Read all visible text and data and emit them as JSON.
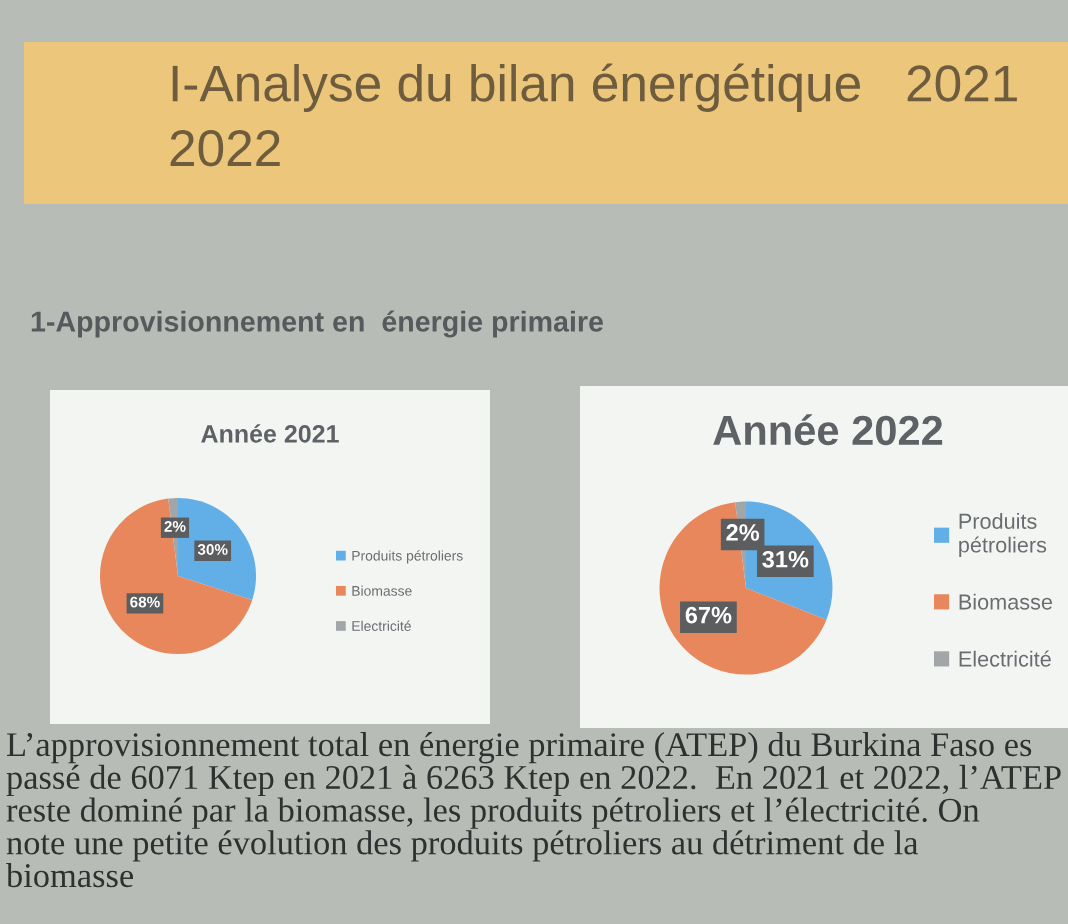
{
  "chart_data": [
    {
      "type": "pie",
      "title": "Année 2021",
      "categories": [
        "Produits pétroliers",
        "Biomasse",
        "Electricité"
      ],
      "values": [
        30,
        68,
        2
      ],
      "colors": [
        "#62aee6",
        "#e8875c",
        "#a3a6a8"
      ],
      "value_labels": [
        "30%",
        "68%",
        "2%"
      ],
      "legend": "right",
      "annotations": [
        "I-Analyse du bilan énergétique   2021\n2022",
        "1-Approvisionnement en  énergie primaire",
        "L’approvisionnement total en énergie primaire (ATEP) du Burkina Faso es\npassé de 6071 Ktep en 2021 à 6263 Ktep en 2022.  En 2021 et 2022, l’ATEP\nreste dominé par la biomasse, les produits pétroliers et l’électricité. On\nnote une petite évolution des produits pétroliers au détriment de la\nbiomasse"
      ]
    },
    {
      "type": "pie",
      "title": "Année 2022",
      "categories": [
        "Produits pétroliers",
        "Biomasse",
        "Electricité"
      ],
      "values": [
        31,
        67,
        2
      ],
      "colors": [
        "#62aee6",
        "#e8875c",
        "#a3a6a8"
      ],
      "value_labels": [
        "31%",
        "67%",
        "2%"
      ],
      "legend": "right"
    }
  ]
}
